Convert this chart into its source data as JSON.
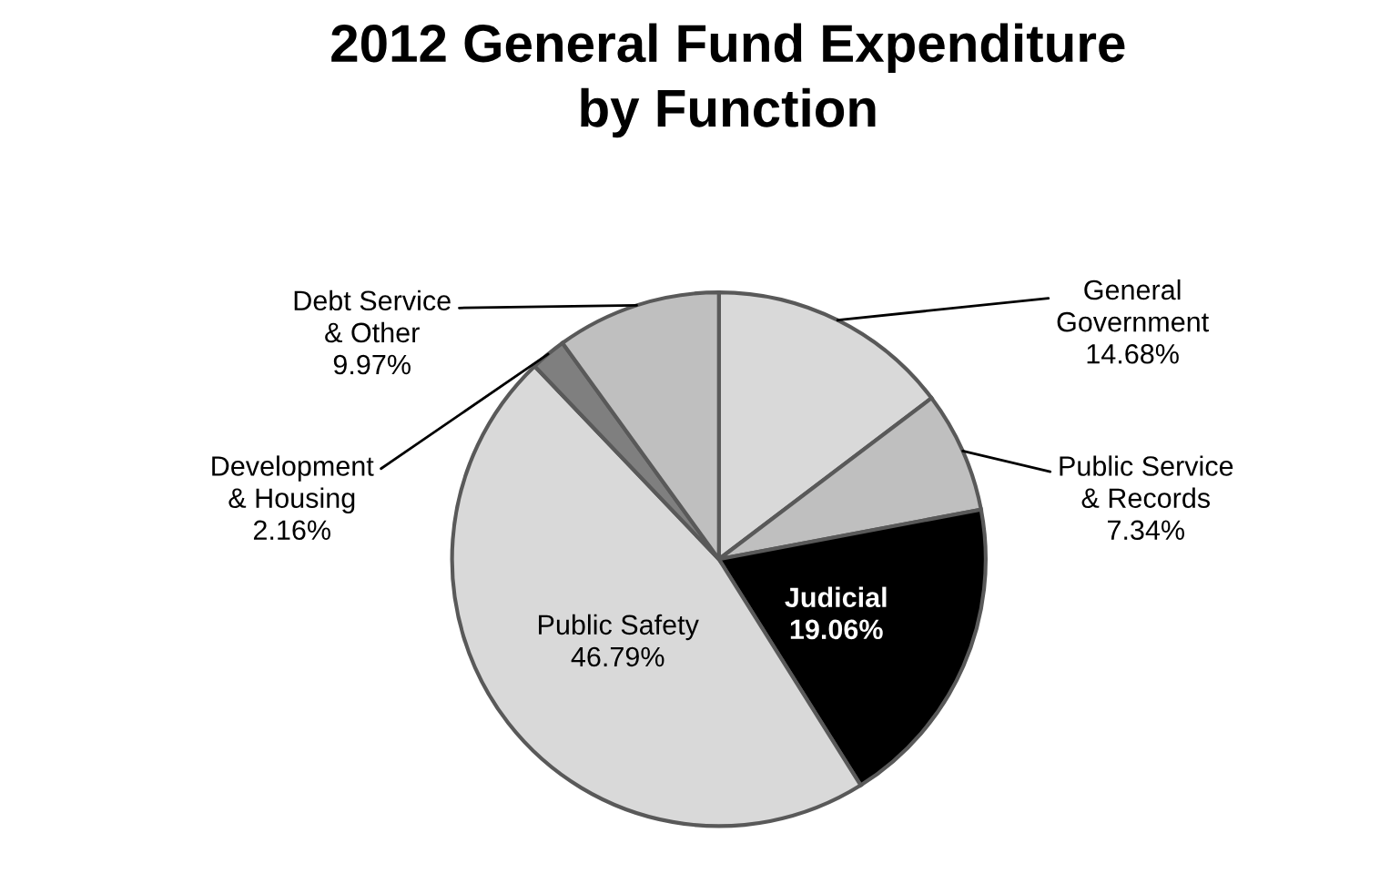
{
  "chart_data": {
    "type": "pie",
    "title": "2012 General Fund Expenditure\nby Function",
    "categories": [
      "General\nGovernment",
      "Public Service\n& Records",
      "Judicial",
      "Public Safety",
      "Development\n& Housing",
      "Debt Service\n& Other"
    ],
    "values": [
      14.68,
      7.34,
      19.06,
      46.79,
      2.16,
      9.97
    ],
    "value_labels": [
      "14.68%",
      "7.34%",
      "19.06%",
      "46.79%",
      "2.16%",
      "9.97%"
    ],
    "colors": [
      "#d9d9d9",
      "#bfbfbf",
      "#000000",
      "#d9d9d9",
      "#7f7f7f",
      "#bfbfbf"
    ],
    "legend": false
  }
}
